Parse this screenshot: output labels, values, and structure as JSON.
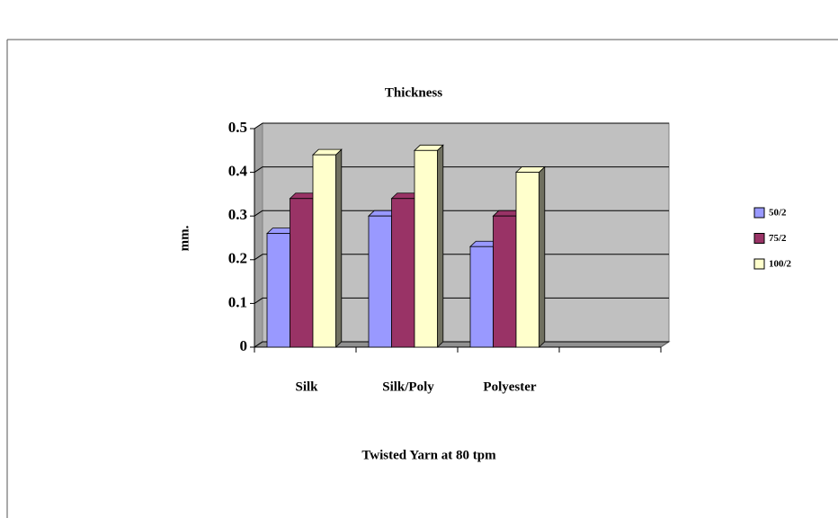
{
  "chart_data": {
    "type": "bar3d",
    "title": "Thickness",
    "x_label": "Twisted Yarn at 80 tpm",
    "y_label": "mm.",
    "categories": [
      "Silk",
      "Silk/Poly",
      "Polyester",
      null
    ],
    "series": [
      {
        "name": "50/2",
        "color": "#9999ff",
        "values": [
          0.26,
          0.3,
          0.23,
          null
        ]
      },
      {
        "name": "75/2",
        "color": "#993366",
        "values": [
          0.34,
          0.34,
          0.3,
          null
        ]
      },
      {
        "name": "100/2",
        "color": "#ffffcc",
        "values": [
          0.44,
          0.45,
          0.4,
          null
        ]
      }
    ],
    "ylim": [
      0,
      0.5
    ],
    "yticks": [
      0,
      0.1,
      0.2,
      0.3,
      0.4,
      0.5
    ],
    "grid": true,
    "legend": "right"
  }
}
